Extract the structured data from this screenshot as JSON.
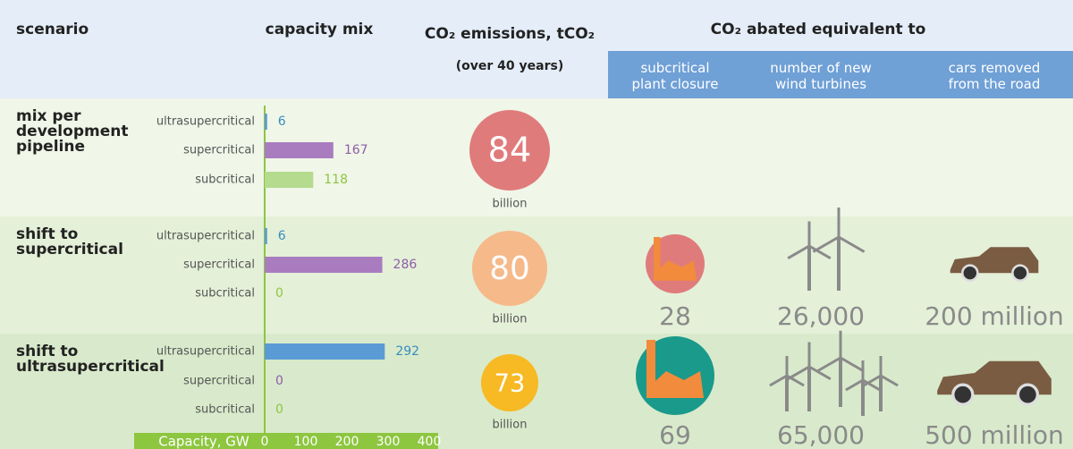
{
  "header": {
    "scenario": "scenario",
    "capacity_mix": "capacity mix",
    "emissions": "CO₂ emissions, tCO₂",
    "emissions_note": "(over 40 years)",
    "abated": "CO₂ abated equivalent to",
    "columns": [
      "subcritical plant closure",
      "number of new wind turbines",
      "cars removed from the road"
    ]
  },
  "colors": {
    "ultrasupercritical": "#5b9bd5",
    "supercritical": "#a97cbf",
    "subcritical": "#b5db8f"
  },
  "label_colors": {
    "ultrasupercritical": "#3a8dc0",
    "supercritical": "#8e5ea8",
    "subcritical": "#8dc63f"
  },
  "axis": {
    "label": "Capacity, GW",
    "lim": [
      0,
      400
    ],
    "ticks": [
      0,
      100,
      200,
      300,
      400
    ]
  },
  "scenarios": [
    {
      "name": "mix per development pipeline",
      "bars": [
        {
          "label": "ultrasupercritical",
          "value": 6
        },
        {
          "label": "supercritical",
          "value": 167
        },
        {
          "label": "subcritical",
          "value": 118
        }
      ],
      "emissions": 84,
      "emissions_unit": "billion",
      "circle_color": "#e07b7b",
      "equivalents": []
    },
    {
      "name": "shift to supercritical",
      "bars": [
        {
          "label": "ultrasupercritical",
          "value": 6
        },
        {
          "label": "supercritical",
          "value": 286
        },
        {
          "label": "subcritical",
          "value": 0
        }
      ],
      "emissions": 80,
      "emissions_unit": "billion",
      "circle_color": "#f6b98a",
      "equivalents": [
        "28",
        "26,000",
        "200 million"
      ]
    },
    {
      "name": "shift to ultrasupercritical",
      "bars": [
        {
          "label": "ultrasupercritical",
          "value": 292
        },
        {
          "label": "supercritical",
          "value": 0
        },
        {
          "label": "subcritical",
          "value": 0
        }
      ],
      "emissions": 73,
      "emissions_unit": "billion",
      "circle_color": "#f7b924",
      "equivalents": [
        "69",
        "65,000",
        "500 million"
      ]
    }
  ]
}
